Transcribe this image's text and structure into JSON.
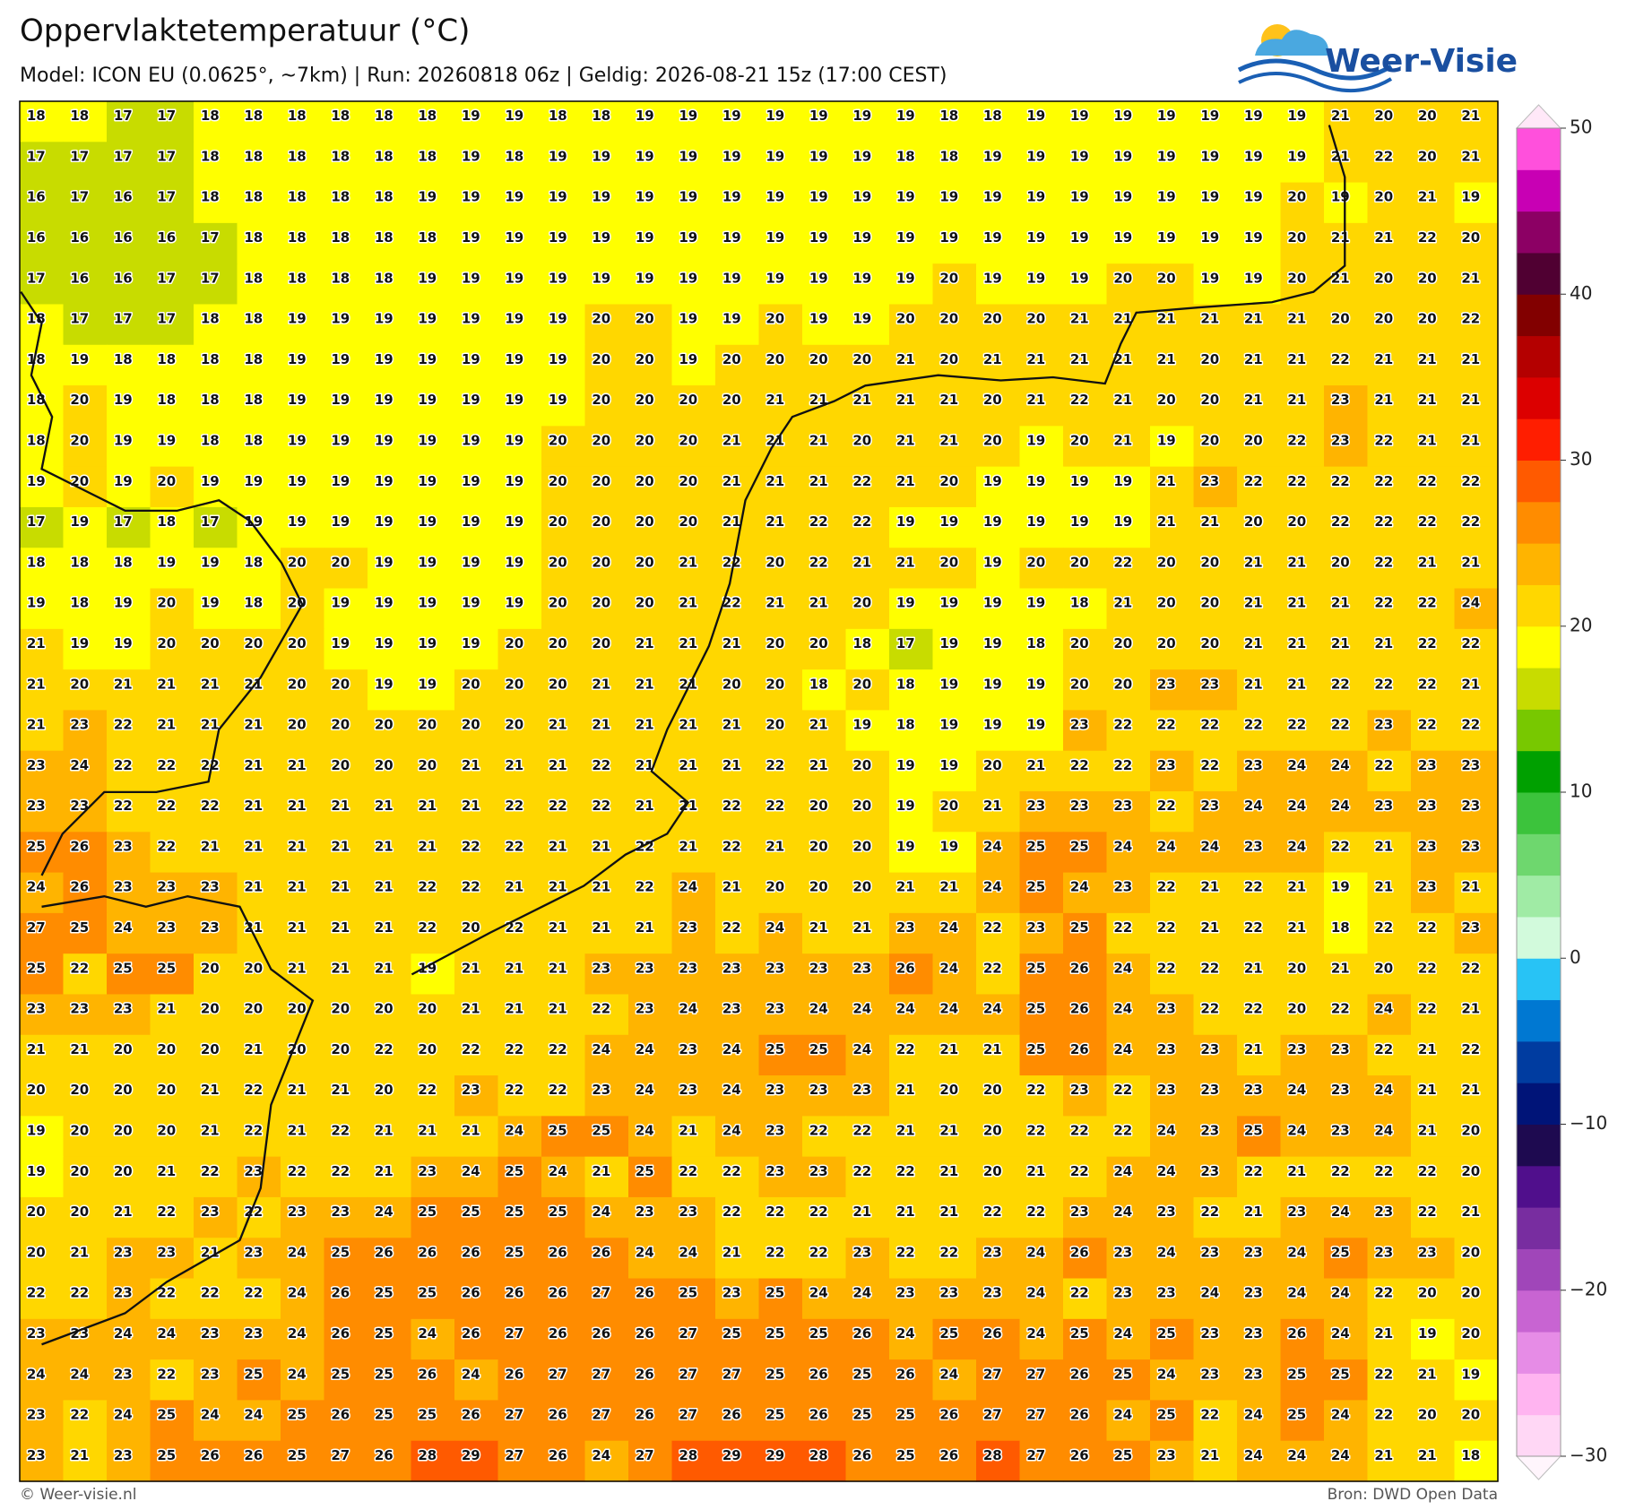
{
  "header": {
    "title": "Oppervlaktetemperatuur (°C)",
    "subtitle": "Model: ICON EU (0.0625°, ~7km)  |  Run: 20260818 06z  |  Geldig: 2026-08-21 15z (17:00 CEST)"
  },
  "logo": {
    "text": "Weer-Visie"
  },
  "grid": {
    "rows": [
      [
        18,
        18,
        17,
        17,
        18,
        18,
        18,
        18,
        18,
        18,
        19,
        19,
        18,
        18,
        19,
        19,
        19,
        19,
        19,
        19,
        19,
        18,
        18,
        19,
        19,
        19,
        19,
        19,
        19,
        19,
        21,
        20,
        20,
        21
      ],
      [
        17,
        17,
        17,
        17,
        18,
        18,
        18,
        18,
        18,
        18,
        19,
        18,
        19,
        19,
        19,
        19,
        19,
        19,
        19,
        19,
        18,
        18,
        19,
        19,
        19,
        19,
        19,
        19,
        19,
        19,
        21,
        22,
        20,
        21
      ],
      [
        16,
        17,
        16,
        17,
        18,
        18,
        18,
        18,
        18,
        19,
        19,
        19,
        19,
        19,
        19,
        19,
        19,
        19,
        19,
        19,
        19,
        19,
        19,
        19,
        19,
        19,
        19,
        19,
        19,
        20,
        19,
        20,
        21,
        19
      ],
      [
        16,
        16,
        16,
        16,
        17,
        18,
        18,
        18,
        18,
        18,
        19,
        19,
        19,
        19,
        19,
        19,
        19,
        19,
        19,
        19,
        19,
        19,
        19,
        19,
        19,
        19,
        19,
        19,
        19,
        20,
        21,
        21,
        22,
        20
      ],
      [
        17,
        16,
        16,
        17,
        17,
        18,
        18,
        18,
        18,
        19,
        19,
        19,
        19,
        19,
        19,
        19,
        19,
        19,
        19,
        19,
        19,
        20,
        19,
        19,
        19,
        20,
        20,
        19,
        19,
        20,
        21,
        20,
        20,
        21
      ],
      [
        18,
        17,
        17,
        17,
        18,
        18,
        19,
        19,
        19,
        19,
        19,
        19,
        19,
        20,
        20,
        19,
        19,
        20,
        19,
        19,
        20,
        20,
        20,
        20,
        21,
        21,
        21,
        21,
        21,
        21,
        20,
        20,
        20,
        22
      ],
      [
        18,
        19,
        18,
        18,
        18,
        18,
        19,
        19,
        19,
        19,
        19,
        19,
        19,
        20,
        20,
        19,
        20,
        20,
        20,
        20,
        21,
        20,
        21,
        21,
        21,
        21,
        21,
        20,
        21,
        21,
        22,
        21,
        21,
        21
      ],
      [
        18,
        20,
        19,
        18,
        18,
        18,
        19,
        19,
        19,
        19,
        19,
        19,
        19,
        20,
        20,
        20,
        20,
        21,
        21,
        21,
        21,
        21,
        20,
        21,
        22,
        21,
        20,
        20,
        21,
        21,
        23,
        21,
        21,
        21
      ],
      [
        18,
        20,
        19,
        19,
        18,
        18,
        19,
        19,
        19,
        19,
        19,
        19,
        20,
        20,
        20,
        20,
        21,
        21,
        21,
        20,
        21,
        21,
        20,
        19,
        20,
        21,
        19,
        20,
        20,
        22,
        23,
        22,
        21,
        21
      ],
      [
        19,
        20,
        19,
        20,
        19,
        19,
        19,
        19,
        19,
        19,
        19,
        19,
        20,
        20,
        20,
        20,
        21,
        21,
        21,
        22,
        21,
        20,
        19,
        19,
        19,
        19,
        21,
        23,
        22,
        22,
        22,
        22,
        22,
        22
      ],
      [
        17,
        19,
        17,
        18,
        17,
        19,
        19,
        19,
        19,
        19,
        19,
        19,
        20,
        20,
        20,
        20,
        21,
        21,
        22,
        22,
        19,
        19,
        19,
        19,
        19,
        19,
        21,
        21,
        20,
        20,
        22,
        22,
        22,
        22
      ],
      [
        18,
        18,
        18,
        19,
        19,
        18,
        20,
        20,
        19,
        19,
        19,
        19,
        20,
        20,
        20,
        21,
        22,
        20,
        22,
        21,
        21,
        20,
        19,
        20,
        20,
        22,
        20,
        20,
        21,
        21,
        20,
        22,
        21,
        21
      ],
      [
        19,
        18,
        19,
        20,
        19,
        18,
        20,
        19,
        19,
        19,
        19,
        19,
        20,
        20,
        20,
        21,
        22,
        21,
        21,
        20,
        19,
        19,
        19,
        19,
        18,
        21,
        20,
        20,
        21,
        21,
        21,
        22,
        22,
        24
      ],
      [
        21,
        19,
        19,
        20,
        20,
        20,
        20,
        19,
        19,
        19,
        19,
        20,
        20,
        20,
        21,
        21,
        21,
        20,
        20,
        18,
        17,
        19,
        19,
        18,
        20,
        20,
        20,
        20,
        21,
        21,
        21,
        21,
        22,
        22
      ],
      [
        21,
        20,
        21,
        21,
        21,
        21,
        20,
        20,
        19,
        19,
        20,
        20,
        20,
        21,
        21,
        21,
        20,
        20,
        18,
        20,
        18,
        19,
        19,
        19,
        20,
        20,
        23,
        23,
        21,
        21,
        22,
        22,
        22,
        21
      ],
      [
        21,
        23,
        22,
        21,
        21,
        21,
        20,
        20,
        20,
        20,
        20,
        20,
        21,
        21,
        21,
        21,
        21,
        20,
        21,
        19,
        18,
        19,
        19,
        19,
        23,
        22,
        22,
        22,
        22,
        22,
        22,
        23,
        22,
        22
      ],
      [
        23,
        24,
        22,
        22,
        22,
        21,
        21,
        20,
        20,
        20,
        21,
        21,
        21,
        22,
        21,
        21,
        21,
        22,
        21,
        20,
        19,
        19,
        20,
        21,
        22,
        22,
        23,
        22,
        23,
        24,
        24,
        22,
        23,
        23
      ],
      [
        23,
        23,
        22,
        22,
        22,
        21,
        21,
        21,
        21,
        21,
        21,
        22,
        22,
        22,
        21,
        21,
        22,
        22,
        20,
        20,
        19,
        20,
        21,
        23,
        23,
        23,
        22,
        23,
        24,
        24,
        24,
        23,
        23,
        23
      ],
      [
        25,
        26,
        23,
        22,
        21,
        21,
        21,
        21,
        21,
        21,
        22,
        22,
        21,
        21,
        22,
        21,
        22,
        21,
        20,
        20,
        19,
        19,
        24,
        25,
        25,
        24,
        24,
        24,
        23,
        24,
        22,
        21,
        23,
        23
      ],
      [
        24,
        26,
        23,
        23,
        23,
        21,
        21,
        21,
        21,
        22,
        22,
        21,
        21,
        21,
        22,
        24,
        21,
        20,
        20,
        20,
        21,
        21,
        24,
        25,
        24,
        23,
        22,
        21,
        22,
        21,
        19,
        21,
        23,
        21
      ],
      [
        27,
        25,
        24,
        23,
        23,
        21,
        21,
        21,
        21,
        22,
        20,
        22,
        21,
        21,
        21,
        23,
        22,
        24,
        21,
        21,
        23,
        24,
        22,
        23,
        25,
        22,
        22,
        21,
        22,
        21,
        18,
        22,
        22,
        23
      ],
      [
        25,
        22,
        25,
        25,
        20,
        20,
        21,
        21,
        21,
        19,
        21,
        21,
        21,
        23,
        23,
        23,
        23,
        23,
        23,
        23,
        26,
        24,
        22,
        25,
        26,
        24,
        22,
        22,
        21,
        20,
        21,
        20,
        22,
        22
      ],
      [
        23,
        23,
        23,
        21,
        20,
        20,
        20,
        20,
        20,
        20,
        21,
        21,
        21,
        22,
        23,
        24,
        23,
        23,
        24,
        24,
        24,
        24,
        24,
        25,
        26,
        24,
        23,
        22,
        22,
        20,
        22,
        24,
        22,
        21
      ],
      [
        21,
        21,
        20,
        20,
        20,
        21,
        20,
        20,
        22,
        20,
        22,
        22,
        22,
        24,
        24,
        23,
        24,
        25,
        25,
        24,
        22,
        21,
        21,
        25,
        26,
        24,
        23,
        23,
        21,
        23,
        23,
        22,
        21,
        22
      ],
      [
        20,
        20,
        20,
        20,
        21,
        22,
        21,
        21,
        20,
        22,
        23,
        22,
        22,
        23,
        24,
        23,
        24,
        23,
        23,
        23,
        21,
        20,
        20,
        22,
        23,
        22,
        23,
        23,
        23,
        24,
        23,
        24,
        21,
        21
      ],
      [
        19,
        20,
        20,
        20,
        21,
        22,
        21,
        22,
        21,
        21,
        21,
        24,
        25,
        25,
        24,
        21,
        24,
        23,
        22,
        22,
        21,
        21,
        20,
        22,
        22,
        22,
        24,
        23,
        25,
        24,
        23,
        24,
        21,
        20
      ],
      [
        19,
        20,
        20,
        21,
        22,
        23,
        22,
        22,
        21,
        23,
        24,
        25,
        24,
        21,
        25,
        22,
        22,
        23,
        23,
        22,
        22,
        21,
        20,
        21,
        22,
        24,
        24,
        23,
        22,
        21,
        22,
        22,
        22,
        20
      ],
      [
        20,
        20,
        21,
        22,
        23,
        22,
        23,
        23,
        24,
        25,
        25,
        25,
        25,
        24,
        23,
        23,
        22,
        22,
        22,
        21,
        21,
        21,
        22,
        22,
        23,
        24,
        23,
        22,
        21,
        23,
        24,
        23,
        22,
        21
      ],
      [
        20,
        21,
        23,
        23,
        21,
        23,
        24,
        25,
        26,
        26,
        26,
        25,
        26,
        26,
        24,
        24,
        21,
        22,
        22,
        23,
        22,
        22,
        23,
        24,
        26,
        23,
        24,
        23,
        23,
        24,
        25,
        23,
        23,
        20
      ],
      [
        22,
        22,
        23,
        22,
        22,
        22,
        24,
        26,
        25,
        25,
        26,
        26,
        26,
        27,
        26,
        25,
        23,
        25,
        24,
        24,
        23,
        23,
        23,
        24,
        22,
        23,
        23,
        24,
        23,
        24,
        24,
        22,
        20,
        20
      ],
      [
        23,
        23,
        24,
        24,
        23,
        23,
        24,
        26,
        25,
        24,
        26,
        27,
        26,
        26,
        26,
        27,
        25,
        25,
        25,
        26,
        24,
        25,
        26,
        24,
        25,
        24,
        25,
        23,
        23,
        26,
        24,
        21,
        19,
        20
      ],
      [
        24,
        24,
        23,
        22,
        23,
        25,
        24,
        25,
        25,
        26,
        24,
        26,
        27,
        27,
        26,
        27,
        27,
        25,
        26,
        25,
        26,
        24,
        27,
        27,
        26,
        25,
        24,
        23,
        23,
        25,
        25,
        22,
        21,
        19
      ],
      [
        23,
        22,
        24,
        25,
        24,
        24,
        25,
        26,
        25,
        25,
        26,
        27,
        26,
        27,
        26,
        27,
        26,
        25,
        26,
        25,
        25,
        26,
        27,
        27,
        26,
        24,
        25,
        22,
        24,
        25,
        24,
        22,
        20,
        20
      ],
      [
        23,
        21,
        23,
        25,
        26,
        26,
        25,
        27,
        26,
        28,
        29,
        27,
        26,
        24,
        27,
        28,
        29,
        29,
        28,
        26,
        25,
        26,
        28,
        27,
        26,
        25,
        23,
        21,
        24,
        24,
        24,
        21,
        21,
        18
      ]
    ]
  },
  "colorbar": {
    "lim": [
      -30,
      50
    ],
    "ticks": [
      {
        "value": -30,
        "label": "−30"
      },
      {
        "value": -20,
        "label": "−20"
      },
      {
        "value": -10,
        "label": "−10"
      },
      0,
      10,
      20,
      30,
      40,
      50
    ],
    "colors": [
      "#ffd7f5",
      "#ffb4f0",
      "#e68ce6",
      "#c864d2",
      "#a046b9",
      "#782da0",
      "#500f8c",
      "#1e0a50",
      "#001478",
      "#003ca0",
      "#0078d2",
      "#28c3f5",
      "#d2fadc",
      "#a0eba5",
      "#6ed76e",
      "#3cc33c",
      "#00a000",
      "#78c800",
      "#c8dc00",
      "#ffff00",
      "#ffd700",
      "#ffb400",
      "#ff8c00",
      "#ff5a00",
      "#ff1e00",
      "#dc0000",
      "#b40000",
      "#820000",
      "#500032",
      "#8c0064",
      "#c800b4",
      "#ff50dc"
    ]
  },
  "footer": {
    "left": "© Weer-visie.nl",
    "right": "Bron: DWD Open Data"
  }
}
